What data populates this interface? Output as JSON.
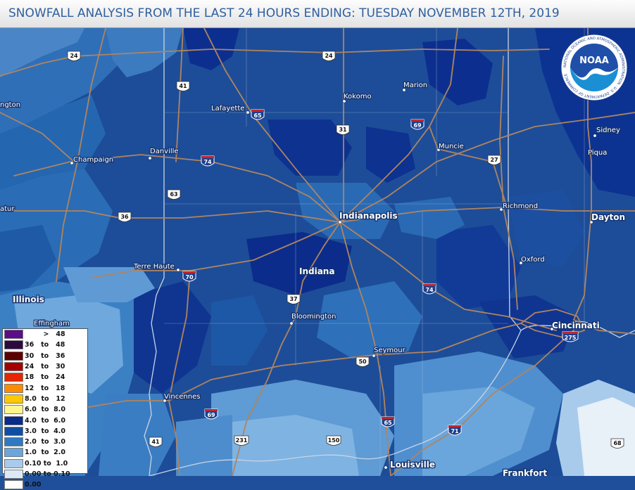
{
  "header": {
    "title": "SNOWFALL ANALYSIS FROM THE LAST 24 HOURS ENDING: TUESDAY NOVEMBER 12TH, 2019"
  },
  "logo": {
    "text": "NOAA",
    "ring_text": "NATIONAL OCEANIC AND ATMOSPHERIC ADMINISTRATION · U.S. DEPARTMENT OF COMMERCE"
  },
  "cities": [
    {
      "id": "champaign",
      "name": "Champaign"
    },
    {
      "id": "danville",
      "name": "Danville"
    },
    {
      "id": "lafayette",
      "name": "Lafayette"
    },
    {
      "id": "kokomo",
      "name": "Kokomo"
    },
    {
      "id": "marion",
      "name": "Marion"
    },
    {
      "id": "muncie",
      "name": "Muncie"
    },
    {
      "id": "sidney",
      "name": "Sidney"
    },
    {
      "id": "piqua",
      "name": "Piqua"
    },
    {
      "id": "indianapolis",
      "name": "Indianapolis"
    },
    {
      "id": "richmond",
      "name": "Richmond"
    },
    {
      "id": "dayton",
      "name": "Dayton"
    },
    {
      "id": "terre-haute",
      "name": "Terre Haute"
    },
    {
      "id": "oxford",
      "name": "Oxford"
    },
    {
      "id": "bloomington",
      "name": "Bloomington"
    },
    {
      "id": "cincinnati",
      "name": "Cincinnati"
    },
    {
      "id": "seymour",
      "name": "Seymour"
    },
    {
      "id": "effingham",
      "name": "Effingham"
    },
    {
      "id": "vincennes",
      "name": "Vincennes"
    },
    {
      "id": "louisville",
      "name": "Louisville"
    },
    {
      "id": "frankfort",
      "name": "Frankfort"
    },
    {
      "id": "partial-left-1",
      "name": "ngton"
    },
    {
      "id": "partial-left-2",
      "name": "atur"
    }
  ],
  "states": [
    {
      "id": "indiana",
      "name": "Indiana"
    },
    {
      "id": "illinois",
      "name": "Illinois"
    }
  ],
  "highways": [
    {
      "id": "us24-west",
      "type": "us",
      "number": "24"
    },
    {
      "id": "us24-east",
      "type": "us",
      "number": "24"
    },
    {
      "id": "us41-north",
      "type": "us",
      "number": "41"
    },
    {
      "id": "i65-north",
      "type": "interstate",
      "number": "65"
    },
    {
      "id": "us31",
      "type": "us",
      "number": "31"
    },
    {
      "id": "i69-north",
      "type": "interstate",
      "number": "69"
    },
    {
      "id": "i74-west",
      "type": "interstate",
      "number": "74"
    },
    {
      "id": "us27",
      "type": "us",
      "number": "27"
    },
    {
      "id": "us63",
      "type": "us",
      "number": "63"
    },
    {
      "id": "us36",
      "type": "us",
      "number": "36"
    },
    {
      "id": "i70",
      "type": "interstate",
      "number": "70"
    },
    {
      "id": "us37",
      "type": "us",
      "number": "37"
    },
    {
      "id": "i74-east",
      "type": "interstate",
      "number": "74"
    },
    {
      "id": "i275",
      "type": "interstate",
      "number": "275"
    },
    {
      "id": "us50",
      "type": "us",
      "number": "50"
    },
    {
      "id": "i69-south",
      "type": "interstate",
      "number": "69"
    },
    {
      "id": "i65-south",
      "type": "interstate",
      "number": "65"
    },
    {
      "id": "i71",
      "type": "interstate",
      "number": "71"
    },
    {
      "id": "us41-south",
      "type": "us",
      "number": "41"
    },
    {
      "id": "us231",
      "type": "us",
      "number": "231"
    },
    {
      "id": "us150",
      "type": "us",
      "number": "150"
    },
    {
      "id": "us68",
      "type": "us",
      "number": "68"
    }
  ],
  "legend": {
    "rows": [
      {
        "label": "        >   48",
        "color": "#5a0e87"
      },
      {
        "label": "36   to   48",
        "color": "#2b0a3d"
      },
      {
        "label": "30   to   36",
        "color": "#5c0000"
      },
      {
        "label": "24   to   30",
        "color": "#a50000"
      },
      {
        "label": "18   to   24",
        "color": "#e52600"
      },
      {
        "label": "12   to   18",
        "color": "#ff8c00"
      },
      {
        "label": "8.0  to   12",
        "color": "#ffc800"
      },
      {
        "label": "6.0  to  8.0",
        "color": "#fff58c"
      },
      {
        "label": "4.0  to  6.0",
        "color": "#0a2a8c"
      },
      {
        "label": "3.0  to  4.0",
        "color": "#0f4fa3"
      },
      {
        "label": "2.0  to  3.0",
        "color": "#2f79c2"
      },
      {
        "label": "1.0  to  2.0",
        "color": "#6aa6db"
      },
      {
        "label": "0.10 to  1.0",
        "color": "#a8cbec"
      },
      {
        "label": "0.00 to 0.10",
        "color": "#dce9f7"
      },
      {
        "label": "0.00",
        "color": "#ffffff"
      }
    ]
  },
  "colors": {
    "road": "#b08460",
    "boundary": "#c9d4e6",
    "city_label_halo": "#12306a",
    "header_text": "#2f5f9e"
  }
}
